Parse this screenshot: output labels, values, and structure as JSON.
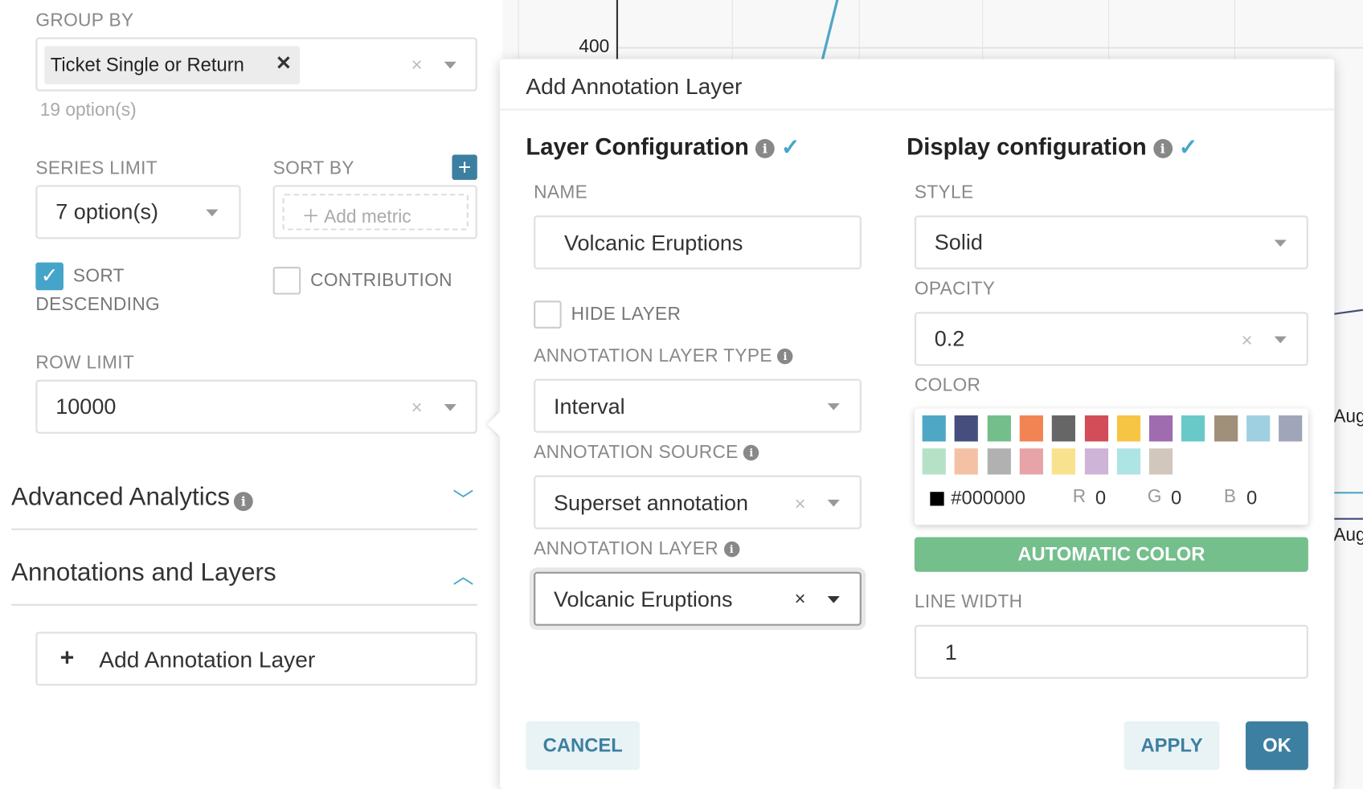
{
  "left": {
    "group_by": {
      "label": "GROUP BY",
      "tag": "Ticket Single or Return",
      "count": "19 option(s)"
    },
    "series_limit": {
      "label": "SERIES LIMIT",
      "value": "7 option(s)"
    },
    "sort_by": {
      "label": "SORT BY",
      "placeholder": "Add metric"
    },
    "sort_descending": {
      "label1": "SORT",
      "label2": "DESCENDING",
      "checked": true
    },
    "contribution": {
      "label": "CONTRIBUTION",
      "checked": false
    },
    "row_limit": {
      "label": "ROW LIMIT",
      "value": "10000"
    },
    "advanced": "Advanced Analytics",
    "annotations": "Annotations and Layers",
    "add_layer": "Add Annotation Layer"
  },
  "chart": {
    "y_tick": "400",
    "x_ticks": [
      "Aug",
      "Aug"
    ]
  },
  "modal": {
    "title": "Add Annotation Layer",
    "layer_config": {
      "heading": "Layer Configuration",
      "name_label": "NAME",
      "name_value": "Volcanic Eruptions",
      "hide_label": "HIDE LAYER",
      "hide_checked": false,
      "type_label": "ANNOTATION LAYER TYPE",
      "type_value": "Interval",
      "source_label": "ANNOTATION SOURCE",
      "source_value": "Superset annotation",
      "layer_label": "ANNOTATION LAYER",
      "layer_value": "Volcanic Eruptions"
    },
    "display_config": {
      "heading": "Display configuration",
      "style_label": "STYLE",
      "style_value": "Solid",
      "opacity_label": "OPACITY",
      "opacity_value": "0.2",
      "color_label": "COLOR",
      "swatches": [
        "#4fa7c6",
        "#454e7c",
        "#74be8c",
        "#f28453",
        "#666666",
        "#d24d57",
        "#f6c543",
        "#9f6cb0",
        "#69c9c9",
        "#a08f79",
        "#9fd0e1",
        "#a0a5b9",
        "#b6e1c6",
        "#f4c1a6",
        "#b1b1b1",
        "#e6a4a9",
        "#f9e28e",
        "#ceb4d7",
        "#ade4e4",
        "#d1c7bc"
      ],
      "hex": "#000000",
      "r_label": "R",
      "r": "0",
      "g_label": "G",
      "g": "0",
      "b_label": "B",
      "b": "0",
      "auto_color": "AUTOMATIC COLOR",
      "line_width_label": "LINE WIDTH",
      "line_width": "1"
    },
    "cancel": "CANCEL",
    "apply": "APPLY",
    "ok": "OK"
  }
}
